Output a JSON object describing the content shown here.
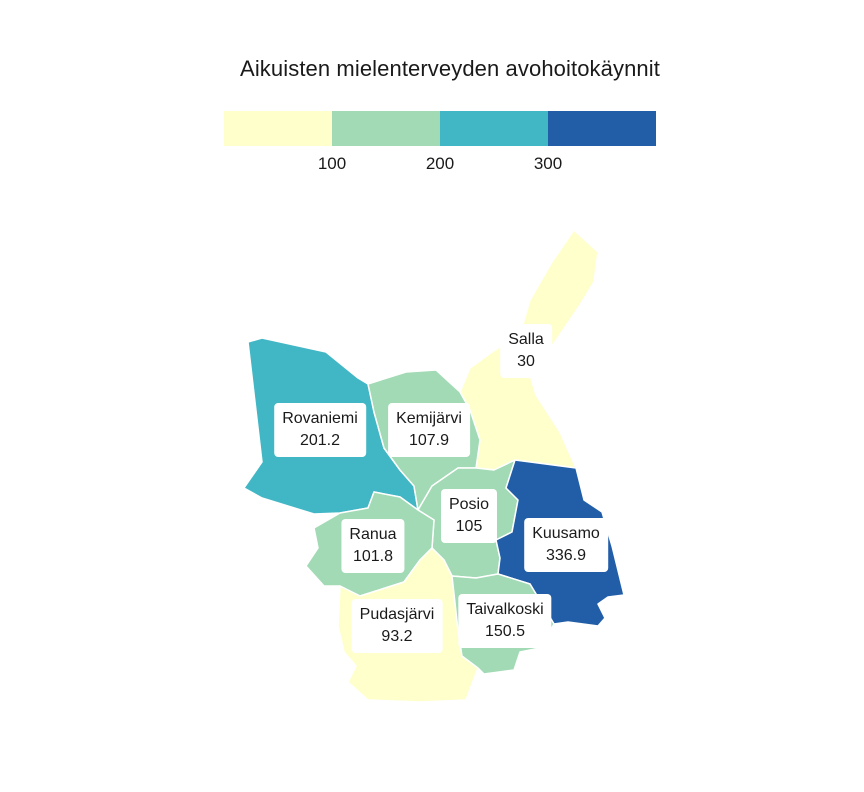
{
  "title": "Aikuisten mielenterveyden avohoitokäynnit",
  "legend": {
    "colors": [
      "#ffffcc",
      "#a1dab4",
      "#41b6c4",
      "#225ea8"
    ],
    "ticks": [
      "100",
      "200",
      "300"
    ]
  },
  "chart_data": {
    "type": "choropleth",
    "title": "Aikuisten mielenterveyden avohoitokäynnit",
    "breaks": [
      100,
      200,
      300
    ],
    "regions": [
      {
        "name": "Salla",
        "value": 30
      },
      {
        "name": "Rovaniemi",
        "value": 201.2
      },
      {
        "name": "Kemijärvi",
        "value": 107.9
      },
      {
        "name": "Posio",
        "value": 105
      },
      {
        "name": "Kuusamo",
        "value": 336.9
      },
      {
        "name": "Ranua",
        "value": 101.8
      },
      {
        "name": "Pudasjärvi",
        "value": 93.2
      },
      {
        "name": "Taivalkoski",
        "value": 150.5
      }
    ]
  }
}
